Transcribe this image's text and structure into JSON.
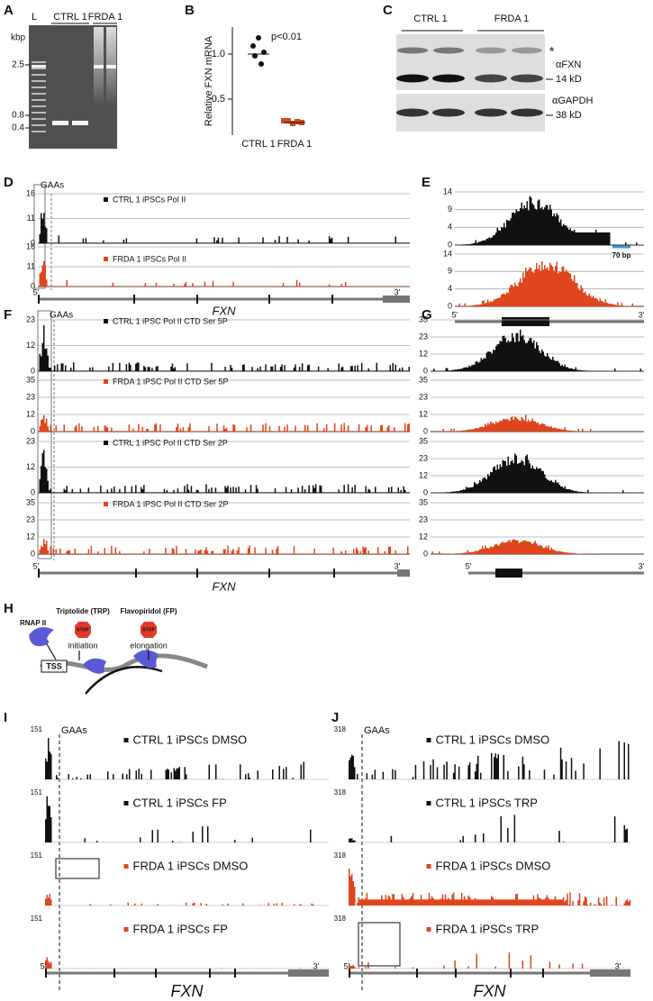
{
  "panels": [
    "A",
    "B",
    "C",
    "D",
    "E",
    "F",
    "G",
    "H",
    "I",
    "J"
  ],
  "gel": {
    "lanes": [
      "L",
      "CTRL 1",
      "FRDA 1"
    ],
    "unit": "kbp",
    "markers": [
      "2.5",
      "0.8",
      "0.4"
    ]
  },
  "chart_data": {
    "type": "strip",
    "y_label": "Relative FXN mRNA",
    "annotation": "p<0.01",
    "categories": [
      "CTRL 1",
      "FRDA 1"
    ],
    "series": [
      {
        "color": "#111111",
        "values": [
          1.18,
          1.09,
          1.02,
          0.98,
          0.89
        ]
      },
      {
        "color": "#d9481c",
        "values": [
          0.26,
          0.26,
          0.23,
          0.25,
          0.24
        ]
      }
    ],
    "means": [
      1.0,
      0.24
    ],
    "ylim": [
      0.1,
      1.3
    ],
    "yticks": [
      {
        "value": 0.5,
        "label": "0.5"
      },
      {
        "value": 1,
        "label": "1.0"
      }
    ]
  },
  "western": {
    "groups": [
      "CTRL 1",
      "FRDA 1"
    ],
    "asterisk": "*",
    "labels": [
      "αFXN",
      "14 kD",
      "αGAPDH",
      "38 kD"
    ]
  },
  "panel_d": {
    "marker": "GAAs",
    "tracks": [
      {
        "label": "CTRL 1 iPSCs Pol II",
        "scale": [
          "16",
          "11",
          "0"
        ]
      },
      {
        "label": "FRDA 1 iPSCs Pol II",
        "scale": [
          "16",
          "11",
          "0"
        ]
      }
    ],
    "ends": [
      "5'",
      "3'"
    ],
    "gene": "FXN"
  },
  "panel_e": {
    "tracks": [
      {
        "scale": [
          "14",
          "9",
          "4",
          "0"
        ]
      },
      {
        "scale": [
          "14",
          "9",
          "4",
          "0"
        ]
      }
    ],
    "scale_bar": "70 bp",
    "ends": [
      "5'",
      "3'"
    ]
  },
  "panel_f": {
    "marker": "GAAs",
    "tracks": [
      {
        "label": "CTRL 1 iPSC Pol II CTD Ser 5P",
        "scale": [
          "23",
          "12",
          "0"
        ]
      },
      {
        "label": "FRDA 1 iPSC Pol II CTD Ser 5P",
        "scale": [
          "35",
          "23",
          "12",
          "0"
        ]
      },
      {
        "label": "CTRL 1 iPSC Pol II CTD Ser 2P",
        "scale": [
          "23",
          "12",
          "0"
        ]
      },
      {
        "label": "FRDA 1 iPSC Pol II CTD Ser 2P",
        "scale": [
          "35",
          "23",
          "12",
          "0"
        ]
      }
    ],
    "ends": [
      "5'",
      "3'"
    ],
    "gene": "FXN"
  },
  "panel_g": {
    "tracks": [
      {
        "scale": [
          "35",
          "23",
          "12",
          "0"
        ]
      },
      {
        "scale": [
          "35",
          "23",
          "12",
          "0"
        ]
      },
      {
        "scale": [
          "35",
          "23",
          "12",
          "0"
        ]
      },
      {
        "scale": [
          "35",
          "23",
          "12",
          "0"
        ]
      }
    ],
    "ends": [
      "5'",
      "3'"
    ]
  },
  "panel_h": {
    "polymerase": "RNAP II",
    "drugs": [
      "Triptolide (TRP)",
      "Flavopiridol (FP)"
    ],
    "stop": "STOP",
    "steps": [
      "initiation",
      "elongation"
    ],
    "tss": "TSS"
  },
  "panel_i": {
    "marker": "GAAs",
    "tracks": [
      {
        "label": "CTRL 1 iPSCs DMSO",
        "scale": "151"
      },
      {
        "label": "CTRL 1 iPSCs FP",
        "scale": "151"
      },
      {
        "label": "FRDA 1 iPSCs DMSO",
        "scale": "151"
      },
      {
        "label": "FRDA 1 iPSCs FP",
        "scale": "151"
      }
    ],
    "ends": [
      "5'",
      "3'"
    ],
    "gene": "FXN"
  },
  "panel_j": {
    "marker": "GAAs",
    "tracks": [
      {
        "label": "CTRL 1 iPSCs DMSO",
        "scale": "318"
      },
      {
        "label": "CTRL 1 iPSCs TRP",
        "scale": "318"
      },
      {
        "label": "FRDA 1 iPSCs DMSO",
        "scale": "318"
      },
      {
        "label": "FRDA 1 iPSCs TRP",
        "scale": "318"
      }
    ],
    "ends": [
      "5'",
      "3'"
    ],
    "gene": "FXN"
  }
}
